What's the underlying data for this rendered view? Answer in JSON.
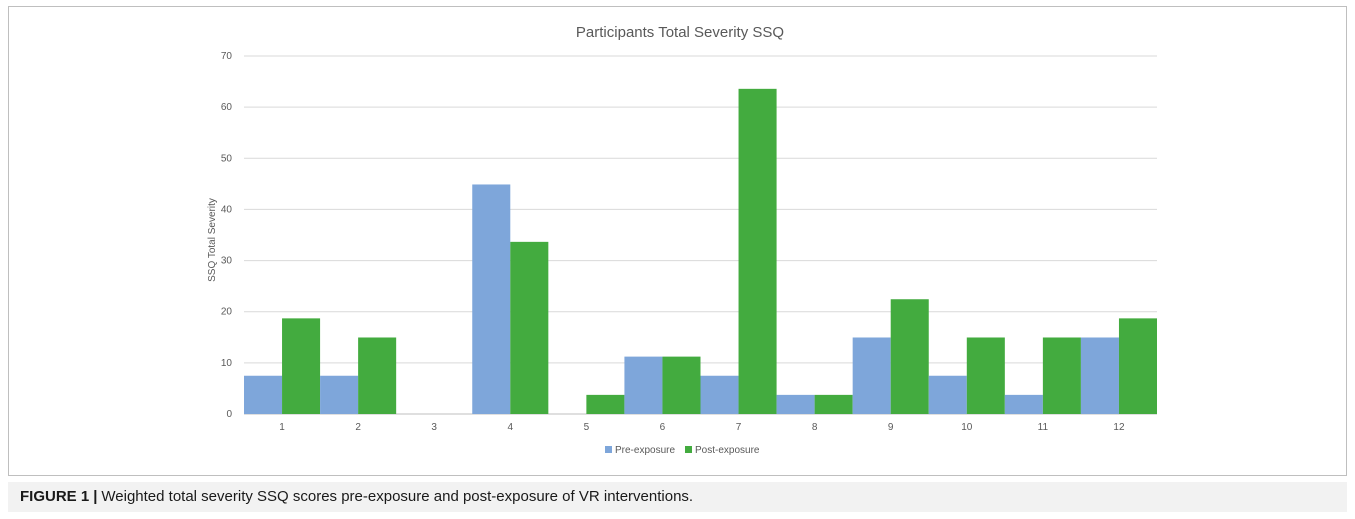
{
  "chart_data": {
    "type": "bar",
    "title": "Participants Total Severity SSQ",
    "xlabel": "",
    "ylabel": "SSQ Total Severity",
    "ylim": [
      0,
      70
    ],
    "yticks": [
      0,
      10,
      20,
      30,
      40,
      50,
      60,
      70
    ],
    "categories": [
      "1",
      "2",
      "3",
      "4",
      "5",
      "6",
      "7",
      "8",
      "9",
      "10",
      "11",
      "12"
    ],
    "series": [
      {
        "name": "Pre-exposure",
        "color": "#7ea6da",
        "values": [
          7.48,
          7.48,
          0,
          44.88,
          0,
          11.22,
          7.48,
          3.74,
          14.96,
          7.48,
          3.74,
          14.96
        ]
      },
      {
        "name": "Post-exposure",
        "color": "#43ab3f",
        "values": [
          18.7,
          14.96,
          0,
          33.66,
          3.74,
          11.22,
          63.58,
          3.74,
          22.44,
          14.96,
          14.96,
          18.7
        ]
      }
    ],
    "grid": true,
    "legend": "bottom-center"
  },
  "caption": {
    "label": "FIGURE 1",
    "separator": "|",
    "text": "Weighted total severity SSQ scores pre-exposure and post-exposure of VR interventions."
  }
}
